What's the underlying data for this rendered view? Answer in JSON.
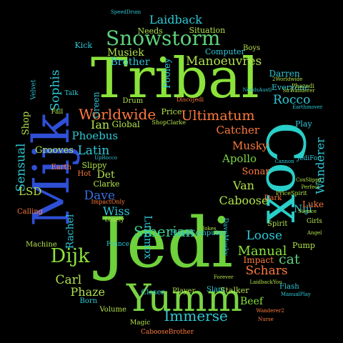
{
  "words": [
    {
      "text": "Tribal",
      "color": "#8be33a"
    },
    {
      "text": "Jedi",
      "color": "#6fd13b"
    },
    {
      "text": "Cox",
      "color": "#29cfc9"
    },
    {
      "text": "Mijk",
      "color": "#2f4fd6"
    },
    {
      "text": "Yumm",
      "color": "#7ad443"
    },
    {
      "text": "Snowstorm",
      "color": "#5ed07a"
    },
    {
      "text": "Worldwide",
      "color": "#ff7a3d"
    },
    {
      "text": "Ultimatum",
      "color": "#ff7a3d"
    },
    {
      "text": "Manoeuvres",
      "color": "#b2e24a"
    },
    {
      "text": "Laidback",
      "color": "#2ec9d6"
    },
    {
      "text": "Immerse",
      "color": "#2ec9d6"
    },
    {
      "text": "Siberian",
      "color": "#3ecf8e"
    },
    {
      "text": "Dijk",
      "color": "#8be33a"
    },
    {
      "text": "Sensual",
      "color": "#2ec9d6"
    },
    {
      "text": "Sophis",
      "color": "#2ec9d6"
    },
    {
      "text": "Rocco",
      "color": "#2ec9d6"
    },
    {
      "text": "Wanderer",
      "color": "#2ec9d6"
    },
    {
      "text": "Catcher",
      "color": "#ff7a3d"
    },
    {
      "text": "Musky",
      "color": "#ff7a3d"
    },
    {
      "text": "Apollo",
      "color": "#7ad443"
    },
    {
      "text": "Sonar",
      "color": "#ff7a3d"
    },
    {
      "text": "Van",
      "color": "#b2e24a"
    },
    {
      "text": "Caboose",
      "color": "#b2e24a"
    },
    {
      "text": "Latin",
      "color": "#2ec9d6"
    },
    {
      "text": "Phoebus",
      "color": "#2ec9d6"
    },
    {
      "text": "Ian",
      "color": "#b2e24a"
    },
    {
      "text": "Global",
      "color": "#b2e24a"
    },
    {
      "text": "Dave",
      "color": "#3b6fe0"
    },
    {
      "text": "Wiss",
      "color": "#2ec9d6"
    },
    {
      "text": "Det",
      "color": "#b2e24a"
    },
    {
      "text": "Rachel",
      "color": "#2ec9d6"
    },
    {
      "text": "Carl",
      "color": "#b2e24a"
    },
    {
      "text": "Phaze",
      "color": "#b2e24a"
    },
    {
      "text": "Lummox",
      "color": "#2ec9d6"
    },
    {
      "text": "Manual",
      "color": "#8be33a"
    },
    {
      "text": "cat",
      "color": "#5ed07a"
    },
    {
      "text": "Schars",
      "color": "#ff7a3d"
    },
    {
      "text": "Impact",
      "color": "#ff7a3d"
    },
    {
      "text": "Loose",
      "color": "#2ec9d6"
    },
    {
      "text": "Beef",
      "color": "#8be33a"
    },
    {
      "text": "Niji",
      "color": "#2ec9d6"
    },
    {
      "text": "Luke",
      "color": "#ff7a3d"
    },
    {
      "text": "Grooves",
      "color": "#b2e24a"
    },
    {
      "text": "LSD",
      "color": "#b2e24a"
    },
    {
      "text": "Shop",
      "color": "#b2e24a"
    },
    {
      "text": "Musiek",
      "color": "#b2e24a"
    },
    {
      "text": "Brother",
      "color": "#2ec9d6"
    },
    {
      "text": "Computer",
      "color": "#2ec9d6"
    },
    {
      "text": "Situation",
      "color": "#b2e24a"
    },
    {
      "text": "Needs",
      "color": "#b2e24a"
    },
    {
      "text": "Kick",
      "color": "#2ec9d6"
    },
    {
      "text": "Pooley",
      "color": "#2ec9d6"
    },
    {
      "text": "Green",
      "color": "#2ec9d6"
    },
    {
      "text": "Drum",
      "color": "#b2e24a"
    },
    {
      "text": "Price",
      "color": "#b2e24a"
    },
    {
      "text": "Darren",
      "color": "#2ec9d6"
    },
    {
      "text": "Everyone",
      "color": "#2ec9d6"
    },
    {
      "text": "Play",
      "color": "#2ec9d6"
    },
    {
      "text": "Slippy",
      "color": "#b2e24a"
    },
    {
      "text": "Clarke",
      "color": "#b2e24a"
    },
    {
      "text": "Hot",
      "color": "#ff7a3d"
    },
    {
      "text": "Earth",
      "color": "#ff7a3d"
    },
    {
      "text": "Calling",
      "color": "#ff7a3d"
    },
    {
      "text": "Machine",
      "color": "#b2e24a"
    },
    {
      "text": "France",
      "color": "#2ec9d6"
    },
    {
      "text": "Volume",
      "color": "#b2e24a"
    },
    {
      "text": "Magic",
      "color": "#b2e24a"
    },
    {
      "text": "Born",
      "color": "#2ec9d6"
    },
    {
      "text": "Closer",
      "color": "#2ec9d6"
    },
    {
      "text": "Player",
      "color": "#b2e24a"
    },
    {
      "text": "Slam",
      "color": "#2ec9d6"
    },
    {
      "text": "Stalker",
      "color": "#b2e24a"
    },
    {
      "text": "Pump",
      "color": "#b2e24a"
    },
    {
      "text": "Flash",
      "color": "#2ec9d6"
    },
    {
      "text": "Spirit",
      "color": "#b2e24a"
    },
    {
      "text": "Girls",
      "color": "#b2e24a"
    },
    {
      "text": "Boys",
      "color": "#b2e24a"
    },
    {
      "text": "Fall",
      "color": "#b2e24a"
    },
    {
      "text": "Talk",
      "color": "#2ec9d6"
    },
    {
      "text": "Velvet",
      "color": "#2ec9d6"
    },
    {
      "text": "Dark",
      "color": "#ff7a3d"
    },
    {
      "text": "FlashComputer",
      "color": "#2ec9d6"
    },
    {
      "text": "JediFor",
      "color": "#2ec9d6"
    },
    {
      "text": "DaveMusky",
      "color": "#2ec9d6"
    },
    {
      "text": "CabooseBrother",
      "color": "#ff7a3d"
    },
    {
      "text": "ImpactOnly",
      "color": "#ff7a3d"
    },
    {
      "text": "Angel",
      "color": "#b2e24a"
    },
    {
      "text": "Phazedi",
      "color": "#b2e24a"
    },
    {
      "text": "UpRocco",
      "color": "#2ec9d6"
    },
    {
      "text": "ShopClarke",
      "color": "#b2e24a"
    },
    {
      "text": "Lonely",
      "color": "#b2e24a"
    },
    {
      "text": "DiscoJedi",
      "color": "#ff7a3d"
    },
    {
      "text": "Jokes",
      "color": "#b2e24a"
    },
    {
      "text": "Forever",
      "color": "#b2e24a"
    },
    {
      "text": "PriceSpirit",
      "color": "#b2e24a"
    },
    {
      "text": "LaidbackYou",
      "color": "#b2e24a"
    },
    {
      "text": "ManualPlay",
      "color": "#2ec9d6"
    },
    {
      "text": "Wanderer2",
      "color": "#ff7a3d"
    },
    {
      "text": "Nurse",
      "color": "#ff7a3d"
    },
    {
      "text": "Cannon",
      "color": "#2ec9d6"
    },
    {
      "text": "Earthmover",
      "color": "#2ec9d6"
    },
    {
      "text": "SirWanderer",
      "color": "#b2e24a"
    },
    {
      "text": "2Worldwide",
      "color": "#b2e24a"
    },
    {
      "text": "NeedsAustl",
      "color": "#2ec9d6"
    },
    {
      "text": "Perfect",
      "color": "#b2e24a"
    },
    {
      "text": "Silence",
      "color": "#b2e24a"
    },
    {
      "text": "CoxSlippy",
      "color": "#b2e24a"
    },
    {
      "text": "SpeedDrum",
      "color": "#2ec9d6"
    }
  ]
}
